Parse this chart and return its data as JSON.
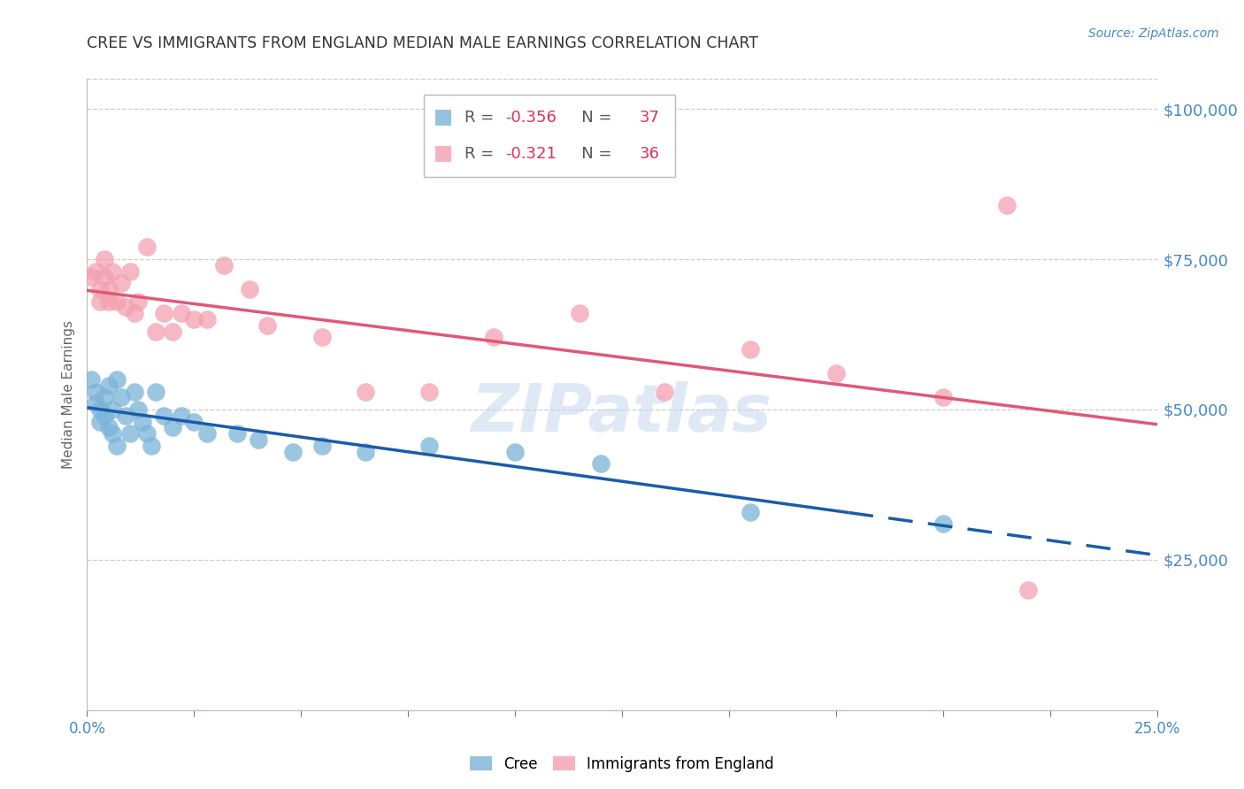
{
  "title": "CREE VS IMMIGRANTS FROM ENGLAND MEDIAN MALE EARNINGS CORRELATION CHART",
  "source": "Source: ZipAtlas.com",
  "ylabel": "Median Male Earnings",
  "xmin": 0.0,
  "xmax": 0.25,
  "ymin": 0,
  "ymax": 105000,
  "cree_color": "#7ab4d8",
  "england_color": "#f4a0b0",
  "cree_line_color": "#1a5ca8",
  "england_line_color": "#e05878",
  "watermark": "ZIPatlas",
  "title_color": "#333333",
  "axis_label_color": "#666666",
  "right_tick_color": "#4488cc",
  "grid_color": "#cccccc",
  "legend_r1_label": "R = ",
  "legend_r1_val": "-0.356",
  "legend_n1_label": "N = ",
  "legend_n1_val": "37",
  "legend_r2_label": "R = ",
  "legend_r2_val": "-0.321",
  "legend_n2_label": "N = ",
  "legend_n2_val": "36",
  "cree_x": [
    0.001,
    0.002,
    0.002,
    0.003,
    0.003,
    0.004,
    0.004,
    0.005,
    0.005,
    0.006,
    0.006,
    0.007,
    0.007,
    0.008,
    0.009,
    0.01,
    0.011,
    0.012,
    0.013,
    0.014,
    0.015,
    0.016,
    0.018,
    0.02,
    0.022,
    0.025,
    0.028,
    0.035,
    0.04,
    0.048,
    0.055,
    0.065,
    0.08,
    0.1,
    0.12,
    0.155,
    0.2
  ],
  "cree_y": [
    55000,
    53000,
    51000,
    50000,
    48000,
    52000,
    49000,
    54000,
    47000,
    50000,
    46000,
    55000,
    44000,
    52000,
    49000,
    46000,
    53000,
    50000,
    48000,
    46000,
    44000,
    53000,
    49000,
    47000,
    49000,
    48000,
    46000,
    46000,
    45000,
    43000,
    44000,
    43000,
    44000,
    43000,
    41000,
    33000,
    31000
  ],
  "england_x": [
    0.001,
    0.002,
    0.003,
    0.003,
    0.004,
    0.004,
    0.005,
    0.005,
    0.006,
    0.007,
    0.008,
    0.009,
    0.01,
    0.011,
    0.012,
    0.014,
    0.016,
    0.018,
    0.02,
    0.022,
    0.025,
    0.028,
    0.032,
    0.038,
    0.042,
    0.055,
    0.065,
    0.08,
    0.095,
    0.115,
    0.135,
    0.155,
    0.175,
    0.2,
    0.215,
    0.22
  ],
  "england_y": [
    72000,
    73000,
    70000,
    68000,
    75000,
    72000,
    68000,
    70000,
    73000,
    68000,
    71000,
    67000,
    73000,
    66000,
    68000,
    77000,
    63000,
    66000,
    63000,
    66000,
    65000,
    65000,
    74000,
    70000,
    64000,
    62000,
    53000,
    53000,
    62000,
    66000,
    53000,
    60000,
    56000,
    52000,
    84000,
    20000
  ]
}
